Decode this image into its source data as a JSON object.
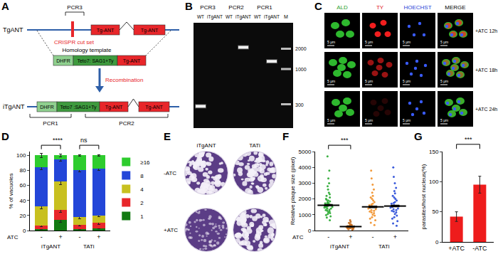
{
  "diagram": {
    "label": "A",
    "wild_type": {
      "name": "TgANT",
      "exons": [
        "Tg-ANT",
        "Tg-ANT"
      ],
      "primer": "PCR3",
      "cut": "CRISPR cut set"
    },
    "template": {
      "name": "Homology template",
      "boxes": [
        "DHFR",
        "Teto7: SAG1+Ty",
        "Tg-ANT"
      ]
    },
    "step": "Recombination",
    "edited": {
      "name": "iTgANT",
      "boxes": [
        "DHFR",
        "Teto7 :SAG1+Ty",
        "Tg-ANT",
        "Tg-ANT"
      ],
      "primers": [
        "PCR1",
        "PCR2"
      ]
    }
  },
  "gel": {
    "label": "B",
    "groups": [
      {
        "label": "PCR3",
        "lanes": [
          "WT",
          "iTgANT"
        ]
      },
      {
        "label": "PCR2",
        "lanes": [
          "WT",
          "iTgANT"
        ]
      },
      {
        "label": "PCR1",
        "lanes": [
          "WT",
          "iTgANT"
        ]
      }
    ],
    "marker_lane": "M",
    "marker_sizes": [
      2000,
      1000,
      300
    ],
    "bands": [
      {
        "lane": 0,
        "size": 280
      },
      {
        "lane": 3,
        "size": 2100
      },
      {
        "lane": 5,
        "size": 1300
      }
    ]
  },
  "micrographs": {
    "label": "C",
    "columns": [
      "ALD",
      "TY",
      "HOECHST",
      "MERGE"
    ],
    "rows": [
      "+ATC 12h",
      "+ATC 18h",
      "+ATC 24h"
    ],
    "scale_bar": "5 μm"
  },
  "plaques": {
    "label": "E",
    "columns": [
      "iTgANT",
      "TATi"
    ],
    "rows": [
      "-ATC",
      "+ATC"
    ]
  },
  "chart_labels": [
    "D",
    "F",
    "G"
  ],
  "chart_data": [
    {
      "type": "bar",
      "stacked": true,
      "categories": [
        "-",
        "+",
        "-",
        "+"
      ],
      "group_labels": [
        {
          "text": "iTgANT",
          "span": [
            0,
            1
          ]
        },
        {
          "text": "TATi",
          "span": [
            2,
            3
          ]
        }
      ],
      "row_label": "ATC",
      "y_label": "% of vacuoles",
      "ylim": [
        0,
        105
      ],
      "yticks": [
        0,
        20,
        40,
        60,
        80,
        100
      ],
      "legend": "right",
      "series": [
        {
          "name": "1",
          "color": "#127a12",
          "values": [
            2,
            14,
            2,
            3
          ],
          "errors": [
            1,
            3,
            1,
            1
          ]
        },
        {
          "name": "2",
          "color": "#e8262a",
          "values": [
            5,
            13,
            6,
            7
          ],
          "errors": [
            2,
            3,
            2,
            2
          ]
        },
        {
          "name": "4",
          "color": "#c8c020",
          "values": [
            25,
            38,
            10,
            10
          ],
          "errors": [
            3,
            4,
            2,
            2
          ]
        },
        {
          "name": "8",
          "color": "#2346d8",
          "values": [
            52,
            30,
            62,
            62
          ],
          "errors": [
            3,
            3,
            2,
            2
          ]
        },
        {
          "name": "≥16",
          "color": "#2ecc2e",
          "values": [
            16,
            5,
            20,
            18
          ],
          "errors": [
            3,
            2,
            1,
            1
          ]
        }
      ],
      "annotations": [
        {
          "text": "****",
          "between": [
            0,
            1
          ]
        },
        {
          "text": "ns",
          "between": [
            2,
            3
          ]
        }
      ]
    },
    {
      "type": "strip",
      "categories": [
        "-",
        "+",
        "-",
        "+"
      ],
      "group_labels": [
        {
          "text": "iTgANT",
          "span": [
            0,
            1
          ]
        },
        {
          "text": "TATi",
          "span": [
            2,
            3
          ]
        }
      ],
      "row_label": "ATC",
      "y_label": "Relative plaque size (pixel)",
      "ylim": [
        0,
        5000
      ],
      "yticks": [
        0,
        1000,
        2000,
        3000,
        4000,
        5000
      ],
      "colors": [
        "#3cb043",
        "#c8742a",
        "#f29a3c",
        "#3b5bdb"
      ],
      "points": [
        [
          650,
          820,
          900,
          980,
          1050,
          1100,
          1150,
          1200,
          1250,
          1300,
          1320,
          1380,
          1400,
          1450,
          1480,
          1500,
          1520,
          1550,
          1580,
          1600,
          1620,
          1650,
          1700,
          1720,
          1750,
          1800,
          1850,
          1900,
          1950,
          2000,
          2100,
          2200,
          2300,
          2400,
          2600,
          2800,
          3000,
          3300,
          3800,
          4700
        ],
        [
          60,
          90,
          110,
          130,
          150,
          160,
          170,
          180,
          190,
          200,
          210,
          220,
          230,
          240,
          250,
          260,
          270,
          280,
          300,
          320,
          350,
          380,
          420,
          480,
          550,
          650
        ],
        [
          350,
          500,
          650,
          750,
          850,
          950,
          1000,
          1100,
          1150,
          1200,
          1250,
          1300,
          1350,
          1400,
          1450,
          1500,
          1550,
          1600,
          1650,
          1700,
          1800,
          1900,
          2000,
          2100,
          2200,
          2400,
          2600,
          2900,
          3300,
          3800
        ],
        [
          300,
          450,
          600,
          750,
          850,
          950,
          1050,
          1150,
          1200,
          1250,
          1300,
          1350,
          1400,
          1450,
          1500,
          1550,
          1600,
          1700,
          1750,
          1800,
          1900,
          2000,
          2100,
          2200,
          2350,
          2500,
          2700,
          3000,
          3400,
          4000
        ]
      ],
      "means": [
        1600,
        250,
        1500,
        1550
      ],
      "sem": [
        40,
        10,
        45,
        45
      ],
      "annotations": [
        {
          "text": "***",
          "between": [
            0,
            1
          ]
        }
      ]
    },
    {
      "type": "bar",
      "categories": [
        "+ATC",
        "-ATC"
      ],
      "values": [
        42,
        95
      ],
      "errors": [
        8,
        14
      ],
      "color": "#ee1c1c",
      "y_label": "parasites/host nucleus(%)",
      "ylim": [
        0,
        150
      ],
      "yticks": [
        0,
        50,
        100,
        150
      ],
      "annotations": [
        {
          "text": "***",
          "between": [
            0,
            1
          ]
        }
      ]
    }
  ]
}
